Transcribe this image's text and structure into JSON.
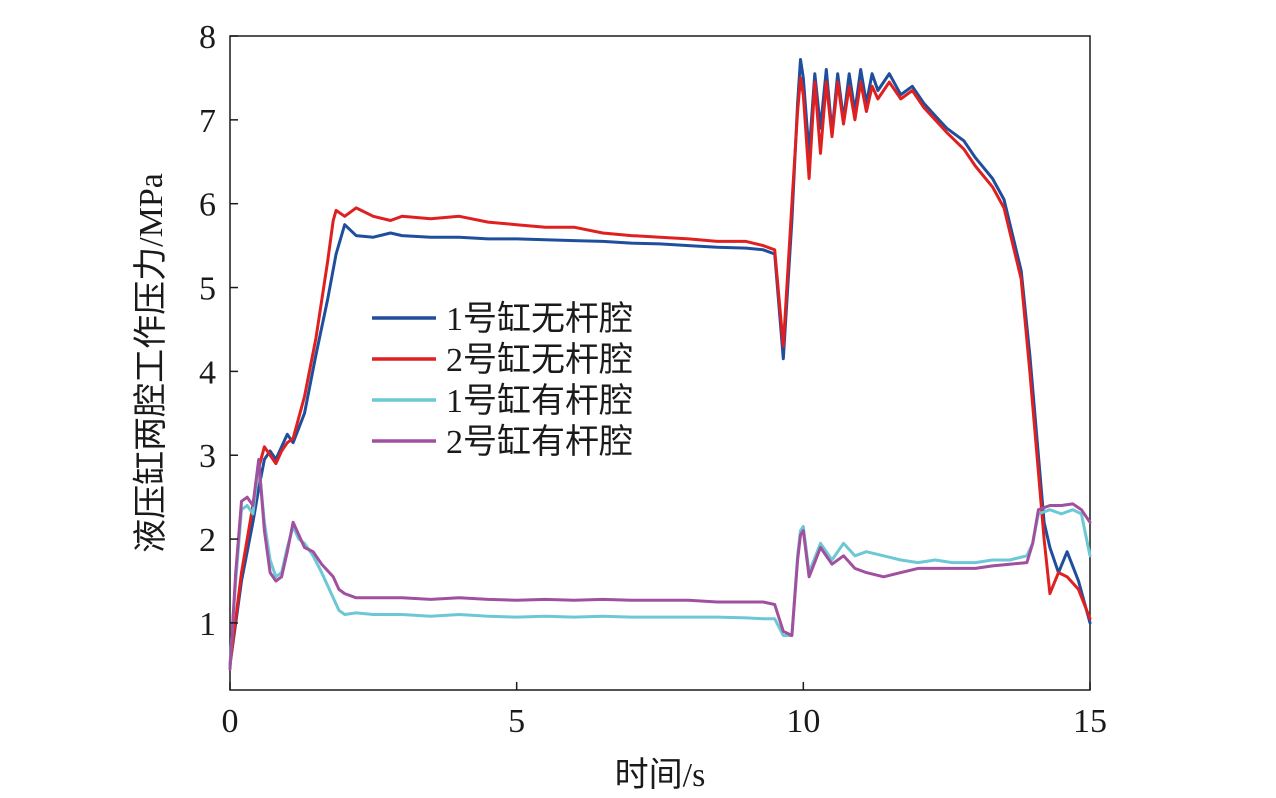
{
  "chart_data": {
    "type": "line",
    "title": "",
    "xlabel": "时间/s",
    "ylabel": "液压缸两腔工作压力/MPa",
    "xlim": [
      0,
      15
    ],
    "ylim": [
      0.2,
      8
    ],
    "xticks": [
      0,
      5,
      10,
      15
    ],
    "yticks": [
      1,
      2,
      3,
      4,
      5,
      6,
      7,
      8
    ],
    "grid": false,
    "legend_position": "center-left",
    "series": [
      {
        "name": "1号缸无杆腔",
        "color": "#1f4e9c",
        "x": [
          0.0,
          0.2,
          0.4,
          0.5,
          0.6,
          0.7,
          0.8,
          0.9,
          1.0,
          1.1,
          1.3,
          1.5,
          1.7,
          1.85,
          2.0,
          2.2,
          2.5,
          2.8,
          3.0,
          3.5,
          4.0,
          4.5,
          5.0,
          5.5,
          6.0,
          6.5,
          7.0,
          7.5,
          8.0,
          8.5,
          9.0,
          9.3,
          9.5,
          9.65,
          9.8,
          9.9,
          9.95,
          10.0,
          10.1,
          10.2,
          10.3,
          10.4,
          10.5,
          10.6,
          10.7,
          10.8,
          10.9,
          11.0,
          11.1,
          11.2,
          11.3,
          11.5,
          11.7,
          11.9,
          12.1,
          12.3,
          12.5,
          12.8,
          13.0,
          13.3,
          13.5,
          13.8,
          13.95,
          14.1,
          14.2,
          14.3,
          14.45,
          14.6,
          14.8,
          15.0
        ],
        "y": [
          0.5,
          1.5,
          2.2,
          2.6,
          2.95,
          3.05,
          2.95,
          3.1,
          3.25,
          3.15,
          3.5,
          4.2,
          4.85,
          5.4,
          5.75,
          5.62,
          5.6,
          5.65,
          5.62,
          5.6,
          5.6,
          5.58,
          5.58,
          5.57,
          5.56,
          5.55,
          5.53,
          5.52,
          5.5,
          5.48,
          5.47,
          5.45,
          5.4,
          4.15,
          5.8,
          7.2,
          7.72,
          7.5,
          6.6,
          7.55,
          6.9,
          7.6,
          6.85,
          7.55,
          7.0,
          7.55,
          7.1,
          7.6,
          7.2,
          7.55,
          7.35,
          7.55,
          7.3,
          7.4,
          7.2,
          7.05,
          6.9,
          6.75,
          6.55,
          6.3,
          6.05,
          5.2,
          4.2,
          3.0,
          2.2,
          1.9,
          1.6,
          1.85,
          1.5,
          1.0
        ]
      },
      {
        "name": "2号缸无杆腔",
        "color": "#e02020",
        "x": [
          0.0,
          0.2,
          0.4,
          0.5,
          0.6,
          0.7,
          0.8,
          0.9,
          1.0,
          1.1,
          1.3,
          1.5,
          1.7,
          1.8,
          1.85,
          2.0,
          2.2,
          2.5,
          2.8,
          3.0,
          3.5,
          4.0,
          4.5,
          5.0,
          5.5,
          6.0,
          6.5,
          7.0,
          7.5,
          8.0,
          8.5,
          9.0,
          9.3,
          9.5,
          9.65,
          9.8,
          9.9,
          9.95,
          10.0,
          10.1,
          10.2,
          10.3,
          10.4,
          10.5,
          10.6,
          10.7,
          10.8,
          10.9,
          11.0,
          11.1,
          11.2,
          11.3,
          11.5,
          11.7,
          11.9,
          12.1,
          12.3,
          12.5,
          12.8,
          13.0,
          13.3,
          13.5,
          13.8,
          13.95,
          14.1,
          14.2,
          14.3,
          14.45,
          14.6,
          14.8,
          15.0
        ],
        "y": [
          0.5,
          1.6,
          2.4,
          2.85,
          3.1,
          3.0,
          2.9,
          3.05,
          3.15,
          3.2,
          3.7,
          4.4,
          5.3,
          5.8,
          5.92,
          5.85,
          5.95,
          5.85,
          5.8,
          5.85,
          5.82,
          5.85,
          5.78,
          5.75,
          5.72,
          5.72,
          5.65,
          5.62,
          5.6,
          5.58,
          5.55,
          5.55,
          5.5,
          5.45,
          4.3,
          6.0,
          7.1,
          7.5,
          7.3,
          6.3,
          7.45,
          6.6,
          7.45,
          6.8,
          7.45,
          6.95,
          7.4,
          7.0,
          7.45,
          7.1,
          7.4,
          7.25,
          7.45,
          7.25,
          7.35,
          7.15,
          7.0,
          6.85,
          6.65,
          6.45,
          6.2,
          5.95,
          5.1,
          4.0,
          2.8,
          2.0,
          1.35,
          1.6,
          1.55,
          1.4,
          1.05
        ]
      },
      {
        "name": "1号缸有杆腔",
        "color": "#6cc8d4",
        "x": [
          0.0,
          0.1,
          0.2,
          0.3,
          0.4,
          0.5,
          0.6,
          0.7,
          0.8,
          0.9,
          1.0,
          1.1,
          1.2,
          1.3,
          1.45,
          1.6,
          1.8,
          1.9,
          2.0,
          2.2,
          2.5,
          3.0,
          3.5,
          4.0,
          4.5,
          5.0,
          5.5,
          6.0,
          6.5,
          7.0,
          7.5,
          8.0,
          8.5,
          9.0,
          9.3,
          9.5,
          9.65,
          9.8,
          9.9,
          9.95,
          10.0,
          10.1,
          10.3,
          10.5,
          10.7,
          10.9,
          11.1,
          11.4,
          11.7,
          12.0,
          12.3,
          12.6,
          13.0,
          13.3,
          13.6,
          13.9,
          14.0,
          14.1,
          14.3,
          14.5,
          14.7,
          14.85,
          15.0
        ],
        "y": [
          0.5,
          1.5,
          2.35,
          2.4,
          2.3,
          2.9,
          2.2,
          1.75,
          1.55,
          1.6,
          1.9,
          2.15,
          2.0,
          1.95,
          1.8,
          1.6,
          1.3,
          1.15,
          1.1,
          1.12,
          1.1,
          1.1,
          1.08,
          1.1,
          1.08,
          1.07,
          1.08,
          1.07,
          1.08,
          1.07,
          1.07,
          1.07,
          1.07,
          1.06,
          1.05,
          1.05,
          0.85,
          0.85,
          1.8,
          2.1,
          2.15,
          1.6,
          1.95,
          1.75,
          1.95,
          1.8,
          1.85,
          1.8,
          1.75,
          1.72,
          1.75,
          1.72,
          1.72,
          1.75,
          1.75,
          1.8,
          1.95,
          2.3,
          2.35,
          2.3,
          2.35,
          2.3,
          1.8
        ]
      },
      {
        "name": "2号缸有杆腔",
        "color": "#a0509e",
        "x": [
          0.0,
          0.1,
          0.2,
          0.3,
          0.4,
          0.5,
          0.6,
          0.7,
          0.8,
          0.9,
          1.0,
          1.1,
          1.2,
          1.3,
          1.45,
          1.6,
          1.8,
          1.9,
          2.0,
          2.2,
          2.5,
          3.0,
          3.5,
          4.0,
          4.5,
          5.0,
          5.5,
          6.0,
          6.5,
          7.0,
          7.5,
          8.0,
          8.5,
          9.0,
          9.3,
          9.5,
          9.65,
          9.8,
          9.9,
          9.95,
          10.0,
          10.1,
          10.3,
          10.5,
          10.7,
          10.9,
          11.1,
          11.4,
          11.7,
          12.0,
          12.3,
          12.6,
          13.0,
          13.3,
          13.6,
          13.9,
          14.0,
          14.1,
          14.3,
          14.5,
          14.7,
          14.85,
          15.0
        ],
        "y": [
          0.45,
          1.6,
          2.45,
          2.5,
          2.4,
          2.95,
          2.1,
          1.6,
          1.5,
          1.55,
          1.85,
          2.2,
          2.05,
          1.9,
          1.85,
          1.7,
          1.55,
          1.4,
          1.35,
          1.3,
          1.3,
          1.3,
          1.28,
          1.3,
          1.28,
          1.27,
          1.28,
          1.27,
          1.28,
          1.27,
          1.27,
          1.27,
          1.25,
          1.25,
          1.25,
          1.22,
          0.9,
          0.85,
          1.75,
          2.05,
          2.1,
          1.55,
          1.9,
          1.7,
          1.8,
          1.65,
          1.6,
          1.55,
          1.6,
          1.65,
          1.65,
          1.65,
          1.65,
          1.68,
          1.7,
          1.72,
          1.95,
          2.35,
          2.4,
          2.4,
          2.42,
          2.35,
          2.2
        ]
      }
    ]
  }
}
